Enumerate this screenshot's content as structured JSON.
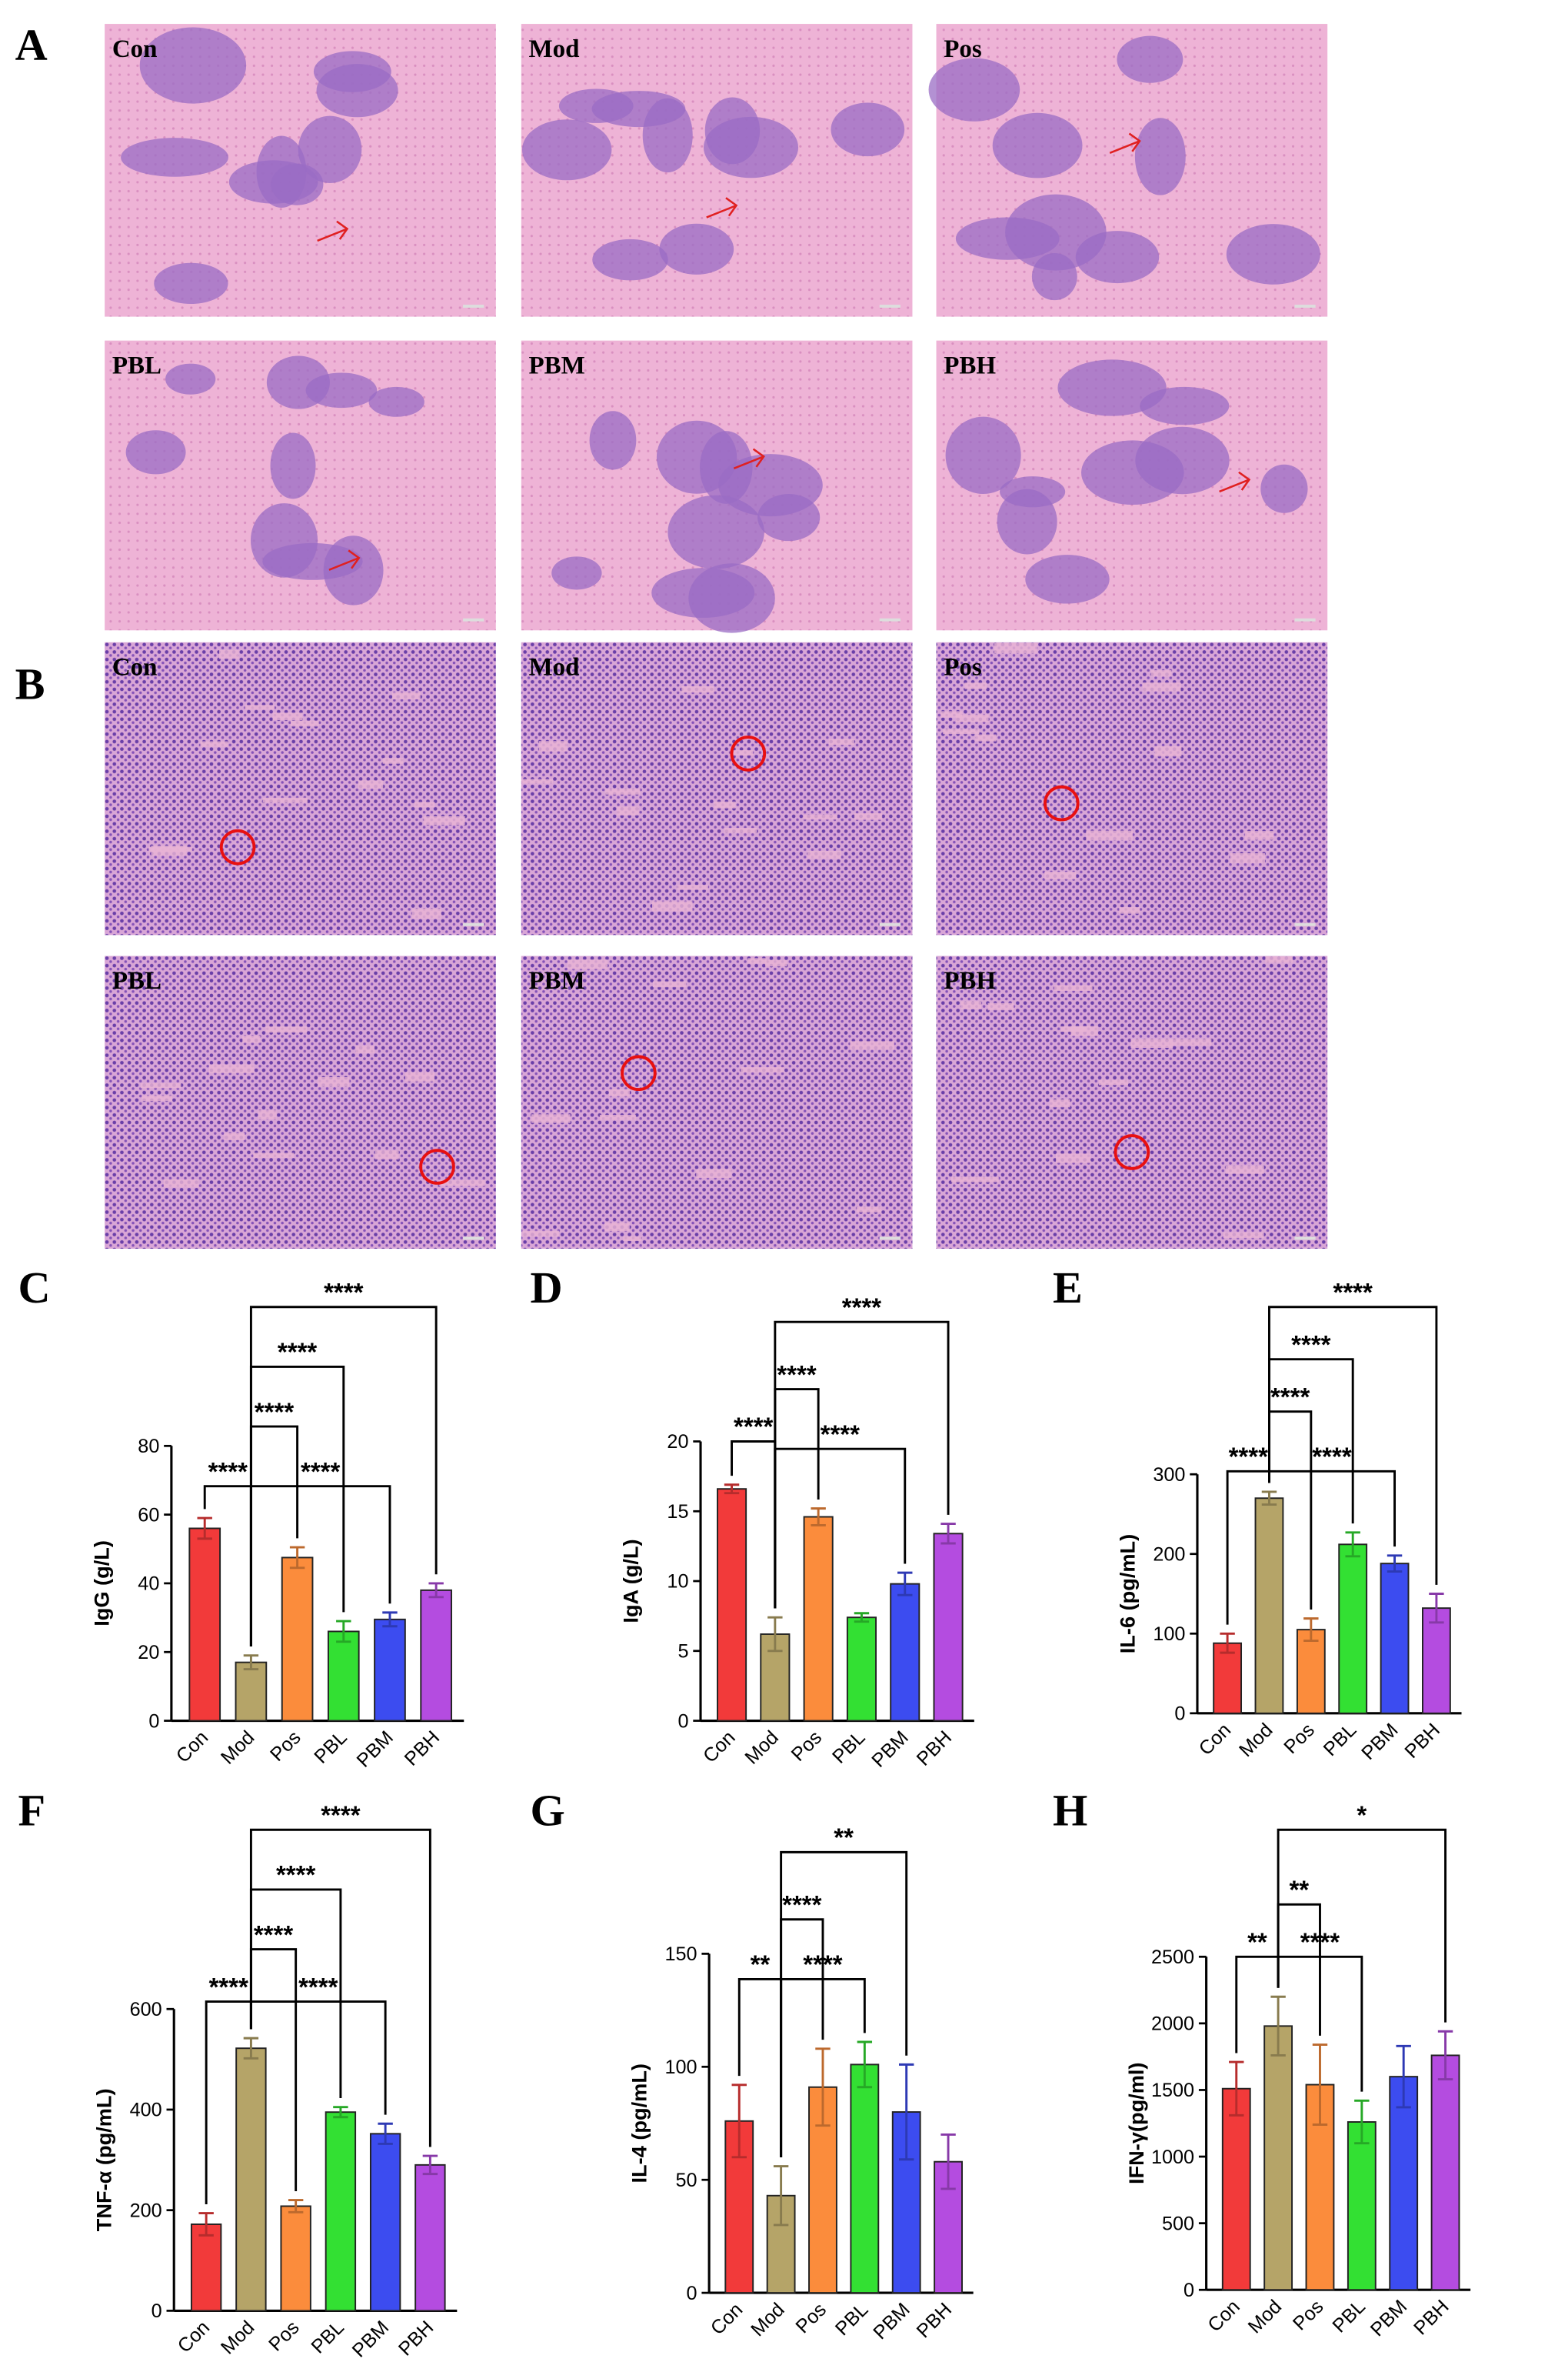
{
  "panels": {
    "A": {
      "label": "A",
      "images": [
        "Con",
        "Mod",
        "Pos",
        "PBL",
        "PBM",
        "PBH"
      ]
    },
    "B": {
      "label": "B",
      "images": [
        "Con",
        "Mod",
        "Pos",
        "PBL",
        "PBM",
        "PBH"
      ]
    }
  },
  "chart_data": [
    {
      "type": "bar",
      "panel": "C",
      "ylabel": "IgG (g/L)",
      "categories": [
        "Con",
        "Mod",
        "Pos",
        "PBL",
        "PBM",
        "PBH"
      ],
      "values": [
        56,
        17,
        47.5,
        26,
        29.5,
        38
      ],
      "errors": [
        3,
        2,
        3,
        3,
        2,
        2
      ],
      "colors": [
        "#f23a3a",
        "#b5a468",
        "#fb8c3c",
        "#33e033",
        "#3c4cf0",
        "#b44ce0"
      ],
      "ylim": [
        0,
        80
      ],
      "yticks": [
        0,
        20,
        40,
        60,
        80
      ],
      "comparisons": [
        {
          "pair": [
            "Con",
            "Mod"
          ],
          "label": "****"
        },
        {
          "pair": [
            "Mod",
            "Pos"
          ],
          "label": "****"
        },
        {
          "pair": [
            "Mod",
            "PBL"
          ],
          "label": "****"
        },
        {
          "pair": [
            "Mod",
            "PBM"
          ],
          "label": "****"
        },
        {
          "pair": [
            "Mod",
            "PBH"
          ],
          "label": "****"
        }
      ]
    },
    {
      "type": "bar",
      "panel": "D",
      "ylabel": "IgA (g/L)",
      "categories": [
        "Con",
        "Mod",
        "Pos",
        "PBL",
        "PBM",
        "PBH"
      ],
      "values": [
        16.6,
        6.2,
        14.6,
        7.4,
        9.8,
        13.4
      ],
      "errors": [
        0.3,
        1.2,
        0.6,
        0.3,
        0.8,
        0.7
      ],
      "colors": [
        "#f23a3a",
        "#b5a468",
        "#fb8c3c",
        "#33e033",
        "#3c4cf0",
        "#b44ce0"
      ],
      "ylim": [
        0,
        20
      ],
      "yticks": [
        0,
        5,
        10,
        15,
        20
      ],
      "comparisons": [
        {
          "pair": [
            "Con",
            "Mod"
          ],
          "label": "****"
        },
        {
          "pair": [
            "Mod",
            "Pos"
          ],
          "label": "****"
        },
        {
          "pair": [
            "Mod",
            "PBM"
          ],
          "label": "****"
        },
        {
          "pair": [
            "Mod",
            "PBH"
          ],
          "label": "****"
        }
      ]
    },
    {
      "type": "bar",
      "panel": "E",
      "ylabel": "IL-6 (pg/mL)",
      "categories": [
        "Con",
        "Mod",
        "Pos",
        "PBL",
        "PBM",
        "PBH"
      ],
      "values": [
        88,
        270,
        105,
        212,
        188,
        132
      ],
      "errors": [
        12,
        8,
        14,
        15,
        10,
        18
      ],
      "colors": [
        "#f23a3a",
        "#b5a468",
        "#fb8c3c",
        "#33e033",
        "#3c4cf0",
        "#b44ce0"
      ],
      "ylim": [
        0,
        300
      ],
      "yticks": [
        0,
        100,
        200,
        300
      ],
      "comparisons": [
        {
          "pair": [
            "Con",
            "Mod"
          ],
          "label": "****"
        },
        {
          "pair": [
            "Mod",
            "Pos"
          ],
          "label": "****"
        },
        {
          "pair": [
            "Mod",
            "PBL"
          ],
          "label": "****"
        },
        {
          "pair": [
            "Mod",
            "PBM"
          ],
          "label": "****"
        },
        {
          "pair": [
            "Mod",
            "PBH"
          ],
          "label": "****"
        }
      ]
    },
    {
      "type": "bar",
      "panel": "F",
      "ylabel": "TNF-α (pg/mL)",
      "categories": [
        "Con",
        "Mod",
        "Pos",
        "PBL",
        "PBM",
        "PBH"
      ],
      "values": [
        172,
        522,
        208,
        395,
        352,
        290
      ],
      "errors": [
        22,
        20,
        12,
        10,
        20,
        18
      ],
      "colors": [
        "#f23a3a",
        "#b5a468",
        "#fb8c3c",
        "#33e033",
        "#3c4cf0",
        "#b44ce0"
      ],
      "ylim": [
        0,
        600
      ],
      "yticks": [
        0,
        200,
        400,
        600
      ],
      "comparisons": [
        {
          "pair": [
            "Con",
            "Mod"
          ],
          "label": "****"
        },
        {
          "pair": [
            "Mod",
            "Pos"
          ],
          "label": "****"
        },
        {
          "pair": [
            "Mod",
            "PBL"
          ],
          "label": "****"
        },
        {
          "pair": [
            "Mod",
            "PBM"
          ],
          "label": "****"
        },
        {
          "pair": [
            "Mod",
            "PBH"
          ],
          "label": "****"
        }
      ]
    },
    {
      "type": "bar",
      "panel": "G",
      "ylabel": "IL-4 (pg/mL)",
      "categories": [
        "Con",
        "Mod",
        "Pos",
        "PBL",
        "PBM",
        "PBH"
      ],
      "values": [
        76,
        43,
        91,
        101,
        80,
        58
      ],
      "errors": [
        16,
        13,
        17,
        10,
        21,
        12
      ],
      "colors": [
        "#f23a3a",
        "#b5a468",
        "#fb8c3c",
        "#33e033",
        "#3c4cf0",
        "#b44ce0"
      ],
      "ylim": [
        0,
        150
      ],
      "yticks": [
        0,
        50,
        100,
        150
      ],
      "comparisons": [
        {
          "pair": [
            "Con",
            "Mod"
          ],
          "label": "**"
        },
        {
          "pair": [
            "Mod",
            "Pos"
          ],
          "label": "****"
        },
        {
          "pair": [
            "Mod",
            "PBL"
          ],
          "label": "****"
        },
        {
          "pair": [
            "Mod",
            "PBM"
          ],
          "label": "**"
        }
      ]
    },
    {
      "type": "bar",
      "panel": "H",
      "ylabel": "IFN-γ(pg/ml)",
      "categories": [
        "Con",
        "Mod",
        "Pos",
        "PBL",
        "PBM",
        "PBH"
      ],
      "values": [
        1510,
        1980,
        1540,
        1260,
        1600,
        1760
      ],
      "errors": [
        200,
        220,
        300,
        160,
        230,
        180
      ],
      "colors": [
        "#f23a3a",
        "#b5a468",
        "#fb8c3c",
        "#33e033",
        "#3c4cf0",
        "#b44ce0"
      ],
      "ylim": [
        0,
        2500
      ],
      "yticks": [
        0,
        500,
        1000,
        1500,
        2000,
        2500
      ],
      "comparisons": [
        {
          "pair": [
            "Con",
            "Mod"
          ],
          "label": "**"
        },
        {
          "pair": [
            "Mod",
            "Pos"
          ],
          "label": "**"
        },
        {
          "pair": [
            "Mod",
            "PBL"
          ],
          "label": "****"
        },
        {
          "pair": [
            "Mod",
            "PBH"
          ],
          "label": "*"
        }
      ]
    }
  ]
}
